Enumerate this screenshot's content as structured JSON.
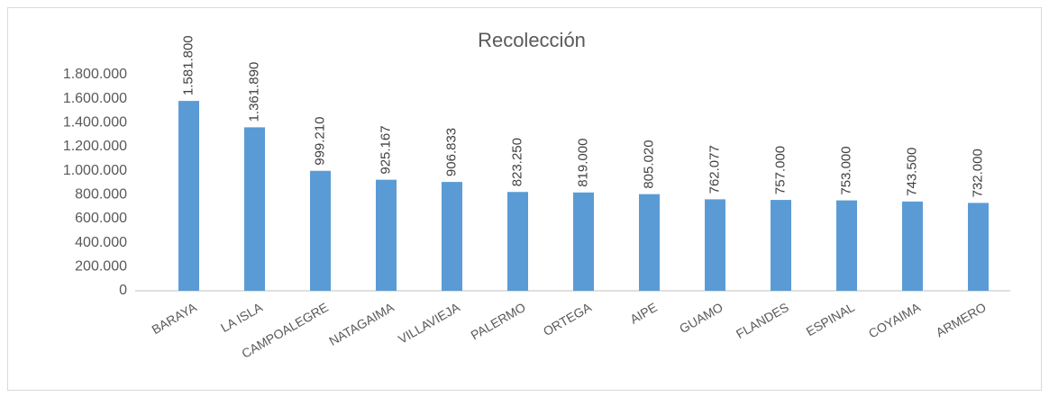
{
  "chart_data": {
    "type": "bar",
    "title": "Recolección",
    "categories": [
      "BARAYA",
      "LA ISLA",
      "CAMPOALEGRE",
      "NATAGAIMA",
      "VILLAVIEJA",
      "PALERMO",
      "ORTEGA",
      "AIPE",
      "GUAMO",
      "FLANDES",
      "ESPINAL",
      "COYAIMA",
      "ARMERO"
    ],
    "values": [
      1581800,
      1361890,
      999210,
      925167,
      906833,
      823250,
      819000,
      805020,
      762077,
      757000,
      753000,
      743500,
      732000
    ],
    "value_labels": [
      "1.581.800",
      "1.361.890",
      "999.210",
      "925.167",
      "906.833",
      "823.250",
      "819.000",
      "805.020",
      "762.077",
      "757.000",
      "753.000",
      "743.500",
      "732.000"
    ],
    "color": "#5b9bd5",
    "ylim": [
      0,
      1800000
    ],
    "yticks": [
      0,
      {
        "value": 200000,
        "label": "200.000"
      },
      {
        "value": 400000,
        "label": "400.000"
      },
      {
        "value": 600000,
        "label": "600.000"
      },
      {
        "value": 800000,
        "label": "800.000"
      },
      {
        "value": 1000000,
        "label": "1.000.000"
      },
      {
        "value": 1200000,
        "label": "1.200.000"
      },
      {
        "value": 1400000,
        "label": "1.400.000"
      },
      {
        "value": 1600000,
        "label": "1.600.000"
      },
      {
        "value": 1800000,
        "label": "1.800.000"
      }
    ],
    "grid": false
  }
}
